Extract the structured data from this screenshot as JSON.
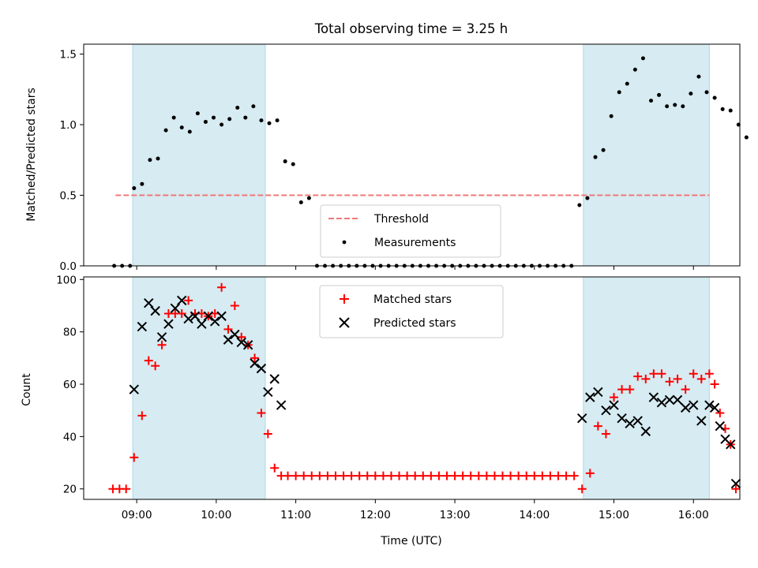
{
  "chart_data": [
    {
      "type": "scatter",
      "title": "Total observing time = 3.25 h",
      "ylabel": "Matched/Predicted stars",
      "xlabel": "",
      "xlim": [
        "08:20",
        "16:35"
      ],
      "ylim": [
        0,
        1.57
      ],
      "yticks": [
        "0.0",
        "0.5",
        "1.0",
        "1.5"
      ],
      "shaded_intervals": [
        [
          "08:57",
          "10:37"
        ],
        [
          "14:37",
          "16:12"
        ]
      ],
      "threshold": {
        "name": "Threshold",
        "value": 0.5,
        "from": "08:44",
        "to": "16:12"
      },
      "legend_placement": "lower center",
      "series": [
        {
          "name": "Measurements",
          "points": [
            [
              "08:43",
              0.0
            ],
            [
              "08:49",
              0.0
            ],
            [
              "08:55",
              0.0
            ],
            [
              "08:58",
              0.55
            ],
            [
              "09:04",
              0.58
            ],
            [
              "09:10",
              0.75
            ],
            [
              "09:16",
              0.76
            ],
            [
              "09:22",
              0.96
            ],
            [
              "09:28",
              1.05
            ],
            [
              "09:34",
              0.98
            ],
            [
              "09:40",
              0.95
            ],
            [
              "09:46",
              1.08
            ],
            [
              "09:52",
              1.02
            ],
            [
              "09:58",
              1.05
            ],
            [
              "10:04",
              1.0
            ],
            [
              "10:10",
              1.04
            ],
            [
              "10:16",
              1.12
            ],
            [
              "10:22",
              1.05
            ],
            [
              "10:28",
              1.13
            ],
            [
              "10:34",
              1.03
            ],
            [
              "10:40",
              1.01
            ],
            [
              "10:46",
              1.03
            ],
            [
              "10:52",
              0.74
            ],
            [
              "10:58",
              0.72
            ],
            [
              "11:04",
              0.45
            ],
            [
              "11:10",
              0.48
            ],
            [
              "11:16",
              0.0
            ],
            [
              "11:22",
              0.0
            ],
            [
              "11:28",
              0.0
            ],
            [
              "11:34",
              0.0
            ],
            [
              "11:40",
              0.0
            ],
            [
              "11:46",
              0.0
            ],
            [
              "11:52",
              0.0
            ],
            [
              "11:58",
              0.0
            ],
            [
              "12:04",
              0.0
            ],
            [
              "12:10",
              0.0
            ],
            [
              "12:16",
              0.0
            ],
            [
              "12:22",
              0.0
            ],
            [
              "12:28",
              0.0
            ],
            [
              "12:34",
              0.0
            ],
            [
              "12:40",
              0.0
            ],
            [
              "12:46",
              0.0
            ],
            [
              "12:52",
              0.0
            ],
            [
              "12:58",
              0.0
            ],
            [
              "13:04",
              0.0
            ],
            [
              "13:10",
              0.0
            ],
            [
              "13:16",
              0.0
            ],
            [
              "13:22",
              0.0
            ],
            [
              "13:28",
              0.0
            ],
            [
              "13:34",
              0.0
            ],
            [
              "13:40",
              0.0
            ],
            [
              "13:46",
              0.0
            ],
            [
              "13:52",
              0.0
            ],
            [
              "13:58",
              0.0
            ],
            [
              "14:04",
              0.0
            ],
            [
              "14:10",
              0.0
            ],
            [
              "14:16",
              0.0
            ],
            [
              "14:22",
              0.0
            ],
            [
              "14:28",
              0.0
            ],
            [
              "14:34",
              0.43
            ],
            [
              "14:40",
              0.48
            ],
            [
              "14:46",
              0.77
            ],
            [
              "14:52",
              0.82
            ],
            [
              "14:58",
              1.06
            ],
            [
              "15:04",
              1.23
            ],
            [
              "15:10",
              1.29
            ],
            [
              "15:16",
              1.39
            ],
            [
              "15:22",
              1.47
            ],
            [
              "15:28",
              1.17
            ],
            [
              "15:34",
              1.21
            ],
            [
              "15:40",
              1.13
            ],
            [
              "15:46",
              1.14
            ],
            [
              "15:52",
              1.13
            ],
            [
              "15:58",
              1.22
            ],
            [
              "16:04",
              1.34
            ],
            [
              "16:10",
              1.23
            ],
            [
              "16:16",
              1.19
            ],
            [
              "16:22",
              1.11
            ],
            [
              "16:28",
              1.1
            ],
            [
              "16:34",
              1.0
            ],
            [
              "16:40",
              0.91
            ]
          ]
        }
      ]
    },
    {
      "type": "scatter",
      "title": "",
      "ylabel": "Count",
      "xlabel": "Time (UTC)",
      "xlim": [
        "08:20",
        "16:35"
      ],
      "ylim": [
        16,
        101
      ],
      "yticks": [
        "20",
        "40",
        "60",
        "80",
        "100"
      ],
      "xticks": [
        "09:00",
        "10:00",
        "11:00",
        "12:00",
        "13:00",
        "14:00",
        "15:00",
        "16:00"
      ],
      "shaded_intervals": [
        [
          "08:57",
          "10:37"
        ],
        [
          "14:37",
          "16:12"
        ]
      ],
      "legend_placement": "upper center",
      "series": [
        {
          "name": "Matched stars",
          "color": "#ff0000",
          "marker": "+",
          "points": [
            [
              "08:42",
              20
            ],
            [
              "08:47",
              20
            ],
            [
              "08:52",
              20
            ],
            [
              "08:58",
              32
            ],
            [
              "09:04",
              48
            ],
            [
              "09:09",
              69
            ],
            [
              "09:14",
              67
            ],
            [
              "09:19",
              75
            ],
            [
              "09:24",
              87
            ],
            [
              "09:29",
              87
            ],
            [
              "09:34",
              87
            ],
            [
              "09:39",
              92
            ],
            [
              "09:44",
              87
            ],
            [
              "09:49",
              87
            ],
            [
              "09:54",
              86
            ],
            [
              "09:59",
              87
            ],
            [
              "10:04",
              97
            ],
            [
              "10:09",
              81
            ],
            [
              "10:14",
              90
            ],
            [
              "10:19",
              78
            ],
            [
              "10:24",
              75
            ],
            [
              "10:29",
              70
            ],
            [
              "10:34",
              49
            ],
            [
              "10:39",
              41
            ],
            [
              "10:44",
              28
            ],
            [
              "10:49",
              25
            ],
            [
              "10:54",
              25
            ],
            [
              "11:00",
              25
            ],
            [
              "11:06",
              25
            ],
            [
              "11:12",
              25
            ],
            [
              "11:18",
              25
            ],
            [
              "11:24",
              25
            ],
            [
              "11:30",
              25
            ],
            [
              "11:36",
              25
            ],
            [
              "11:42",
              25
            ],
            [
              "11:48",
              25
            ],
            [
              "11:54",
              25
            ],
            [
              "12:00",
              25
            ],
            [
              "12:06",
              25
            ],
            [
              "12:12",
              25
            ],
            [
              "12:18",
              25
            ],
            [
              "12:24",
              25
            ],
            [
              "12:30",
              25
            ],
            [
              "12:36",
              25
            ],
            [
              "12:42",
              25
            ],
            [
              "12:48",
              25
            ],
            [
              "12:54",
              25
            ],
            [
              "13:00",
              25
            ],
            [
              "13:06",
              25
            ],
            [
              "13:12",
              25
            ],
            [
              "13:18",
              25
            ],
            [
              "13:24",
              25
            ],
            [
              "13:30",
              25
            ],
            [
              "13:36",
              25
            ],
            [
              "13:42",
              25
            ],
            [
              "13:48",
              25
            ],
            [
              "13:54",
              25
            ],
            [
              "14:00",
              25
            ],
            [
              "14:06",
              25
            ],
            [
              "14:12",
              25
            ],
            [
              "14:18",
              25
            ],
            [
              "14:24",
              25
            ],
            [
              "14:30",
              25
            ],
            [
              "14:36",
              20
            ],
            [
              "14:42",
              26
            ],
            [
              "14:48",
              44
            ],
            [
              "14:54",
              41
            ],
            [
              "15:00",
              55
            ],
            [
              "15:06",
              58
            ],
            [
              "15:12",
              58
            ],
            [
              "15:18",
              63
            ],
            [
              "15:24",
              62
            ],
            [
              "15:30",
              64
            ],
            [
              "15:36",
              64
            ],
            [
              "15:42",
              61
            ],
            [
              "15:48",
              62
            ],
            [
              "15:54",
              58
            ],
            [
              "16:00",
              64
            ],
            [
              "16:06",
              62
            ],
            [
              "16:12",
              64
            ],
            [
              "16:16",
              60
            ],
            [
              "16:20",
              49
            ],
            [
              "16:24",
              43
            ],
            [
              "16:28",
              37
            ],
            [
              "16:32",
              20
            ]
          ]
        },
        {
          "name": "Predicted stars",
          "color": "#000000",
          "marker": "x",
          "points": [
            [
              "08:58",
              58
            ],
            [
              "09:04",
              82
            ],
            [
              "09:09",
              91
            ],
            [
              "09:14",
              88
            ],
            [
              "09:19",
              78
            ],
            [
              "09:24",
              83
            ],
            [
              "09:29",
              89
            ],
            [
              "09:34",
              92
            ],
            [
              "09:39",
              85
            ],
            [
              "09:44",
              86
            ],
            [
              "09:49",
              83
            ],
            [
              "09:54",
              86
            ],
            [
              "09:59",
              84
            ],
            [
              "10:04",
              86
            ],
            [
              "10:09",
              77
            ],
            [
              "10:14",
              79
            ],
            [
              "10:19",
              76
            ],
            [
              "10:24",
              75
            ],
            [
              "10:29",
              68
            ],
            [
              "10:34",
              66
            ],
            [
              "10:39",
              57
            ],
            [
              "10:44",
              62
            ],
            [
              "10:49",
              52
            ],
            [
              "14:36",
              47
            ],
            [
              "14:42",
              55
            ],
            [
              "14:48",
              57
            ],
            [
              "14:54",
              50
            ],
            [
              "15:00",
              52
            ],
            [
              "15:06",
              47
            ],
            [
              "15:12",
              45
            ],
            [
              "15:18",
              46
            ],
            [
              "15:24",
              42
            ],
            [
              "15:30",
              55
            ],
            [
              "15:36",
              53
            ],
            [
              "15:42",
              54
            ],
            [
              "15:48",
              54
            ],
            [
              "15:54",
              51
            ],
            [
              "16:00",
              52
            ],
            [
              "16:06",
              46
            ],
            [
              "16:12",
              52
            ],
            [
              "16:16",
              51
            ],
            [
              "16:20",
              44
            ],
            [
              "16:24",
              39
            ],
            [
              "16:28",
              37
            ],
            [
              "16:32",
              22
            ]
          ]
        }
      ]
    }
  ]
}
